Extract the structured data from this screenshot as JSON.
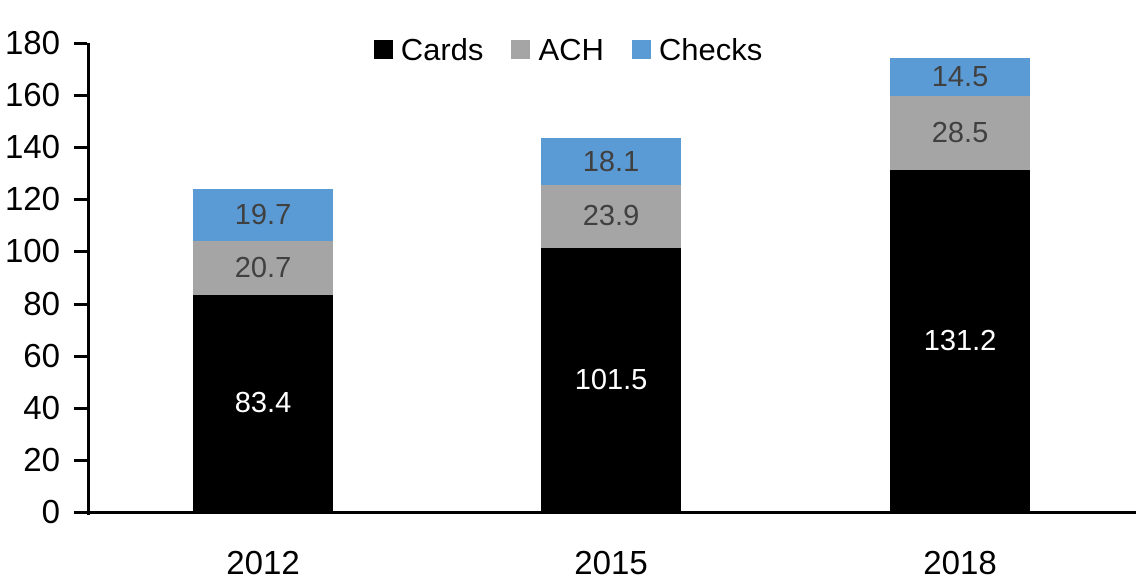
{
  "chart_data": {
    "type": "bar",
    "stacked": true,
    "title": "",
    "categories": [
      "2012",
      "2015",
      "2018"
    ],
    "series": [
      {
        "name": "Cards",
        "color": "#000000",
        "label_color": "#FFFFFF",
        "values": [
          83.4,
          101.5,
          131.2
        ]
      },
      {
        "name": "ACH",
        "color": "#A5A5A5",
        "label_color": "#404040",
        "values": [
          20.7,
          23.9,
          28.5
        ]
      },
      {
        "name": "Checks",
        "color": "#5B9BD5",
        "label_color": "#404040",
        "values": [
          19.7,
          18.1,
          14.5
        ]
      }
    ],
    "ylim": [
      0,
      180
    ],
    "yticks": [
      0,
      20,
      40,
      60,
      80,
      100,
      120,
      140,
      160,
      180
    ],
    "legend_position": "top",
    "grid": false,
    "data_labels": true,
    "value_decimals": 1,
    "axis_color": "#000000",
    "text_color": "#000000"
  }
}
